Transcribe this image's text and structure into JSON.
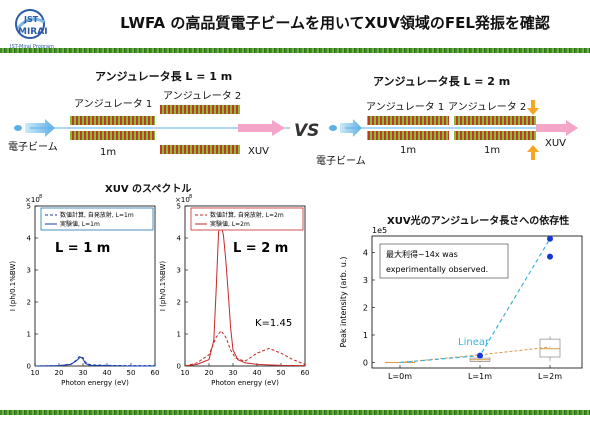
{
  "header": {
    "logo_line1": "JST",
    "logo_line2": "MIRAI",
    "logo_sub": "JST-Mirai Program",
    "title": "LWFA の高品質電子ビームを用いてXUV領域のFEL発振を確認"
  },
  "diagram_left": {
    "heading": "アンジュレータ長 L = 1 m",
    "undulator1": "アンジュレータ 1",
    "undulator2": "アンジュレータ 2",
    "beam": "電子ビーム",
    "length": "1m",
    "output": "XUV"
  },
  "vs": "VS",
  "diagram_right": {
    "heading": "アンジュレータ長 L = 2 m",
    "undulator1": "アンジュレータ 1",
    "undulator2": "アンジュレータ 2",
    "beam": "電子ビーム",
    "length1": "1m",
    "length2": "1m",
    "output": "XUV"
  },
  "spectrum": {
    "title": "XUV のスペクトル",
    "ylabel": "I (ph/0.1%BW)",
    "xlabel": "Photon energy (eV)",
    "exponent": "×10",
    "exponent_power": "8",
    "ytick_labels": [
      "5",
      "4",
      "3",
      "2",
      "1",
      "0"
    ],
    "xtick_labels": [
      "10",
      "20",
      "30",
      "40",
      "50",
      "60"
    ],
    "panel1": {
      "label": "L = 1 m",
      "legend_sim": "数値計算, 自発放射, L=1m",
      "legend_exp": "実験値, L=1m"
    },
    "panel2": {
      "label": "L = 2 m",
      "legend_sim": "数値計算, 自発放射, L=2m",
      "legend_exp": "実験値, L=2m",
      "k_label": "K=1.45"
    }
  },
  "dependence": {
    "title": "XUV光のアンジュレータ長さへの依存性",
    "ylabel": "Peak intensity (arb. u.)",
    "exponent": "1e5",
    "annotation_line1": "最大利得~14x was",
    "annotation_line2": "experimentally  observed.",
    "linear_label": "Linear",
    "categories": [
      "L=0m",
      "L=1m",
      "L=2m"
    ],
    "ytick_labels": [
      "0",
      "1",
      "2",
      "3",
      "4"
    ]
  },
  "colors": {
    "accent_blue": "#1f77b4",
    "red": "#c62828",
    "dashed_blue": "#1a3fb0",
    "point_blue": "#1636d6",
    "linear_cyan": "#3ab4dc",
    "box_orange": "#d99a4a",
    "beam_blue": "#5bb0e6",
    "xuv_pink": "#f3a6c8"
  },
  "chart_data": [
    {
      "type": "line",
      "xlabel": "Photon energy (eV)",
      "ylabel": "I (ph/0.1%BW)",
      "xlim": [
        10,
        60
      ],
      "ylim": [
        0,
        5
      ],
      "series": [
        {
          "name": "数値計算, 自発放射, L=1m",
          "x": [
            10,
            20,
            25,
            27,
            28.5,
            30,
            31,
            33,
            40,
            50,
            60
          ],
          "values": [
            0,
            0.01,
            0.06,
            0.17,
            0.3,
            0.26,
            0.12,
            0.04,
            0.02,
            0.01,
            0.01
          ]
        },
        {
          "name": "実験値, L=1m",
          "x": [
            10,
            20,
            25,
            27,
            29,
            30,
            31,
            33,
            40,
            50,
            60
          ],
          "values": [
            0,
            0.01,
            0.05,
            0.15,
            0.28,
            0.22,
            0.08,
            0.02,
            0.01,
            0,
            0
          ]
        }
      ]
    },
    {
      "type": "line",
      "xlabel": "Photon energy (eV)",
      "ylabel": "I (ph/0.1%BW)",
      "xlim": [
        10,
        60
      ],
      "ylim": [
        0,
        5
      ],
      "series": [
        {
          "name": "数値計算, 自発放射, L=2m",
          "x": [
            10,
            15,
            20,
            23,
            25,
            27,
            29,
            31,
            35,
            40,
            45,
            50,
            55,
            60
          ],
          "values": [
            0,
            0.1,
            0.35,
            0.9,
            1.1,
            0.9,
            0.5,
            0.25,
            0.15,
            0.4,
            0.55,
            0.4,
            0.2,
            0.05
          ]
        },
        {
          "name": "実験値, L=2m",
          "x": [
            10,
            15,
            20,
            22,
            23,
            24,
            25,
            26,
            27,
            28,
            29,
            30,
            32,
            35,
            40,
            50,
            60
          ],
          "values": [
            0,
            0.05,
            0.2,
            0.8,
            2.4,
            4.2,
            4.4,
            4.1,
            3.3,
            2.3,
            1.2,
            0.5,
            0.2,
            0.1,
            0.05,
            0.02,
            0.01
          ]
        }
      ]
    },
    {
      "type": "scatter",
      "categories": [
        "L=0m",
        "L=1m",
        "L=2m"
      ],
      "ylabel": "Peak intensity (arb. u.)",
      "ylim": [
        -0.2,
        4.6
      ],
      "series": [
        {
          "name": "measured",
          "values": [
            [
              0
            ],
            [
              0.25
            ],
            [
              4.5,
              3.85
            ]
          ]
        },
        {
          "name": "Linear",
          "values": [
            0,
            0.28,
            0.56
          ]
        }
      ],
      "boxes": [
        {
          "category": "L=0m",
          "q1": 0,
          "median": 0,
          "q3": 0,
          "min": 0,
          "max": 0
        },
        {
          "category": "L=1m",
          "q1": 0.04,
          "median": 0.1,
          "q3": 0.16,
          "min": 0,
          "max": 0.22
        },
        {
          "category": "L=2m",
          "q1": 0.2,
          "median": 0.5,
          "q3": 0.85,
          "min": 0.05,
          "max": 0.95
        }
      ]
    }
  ]
}
